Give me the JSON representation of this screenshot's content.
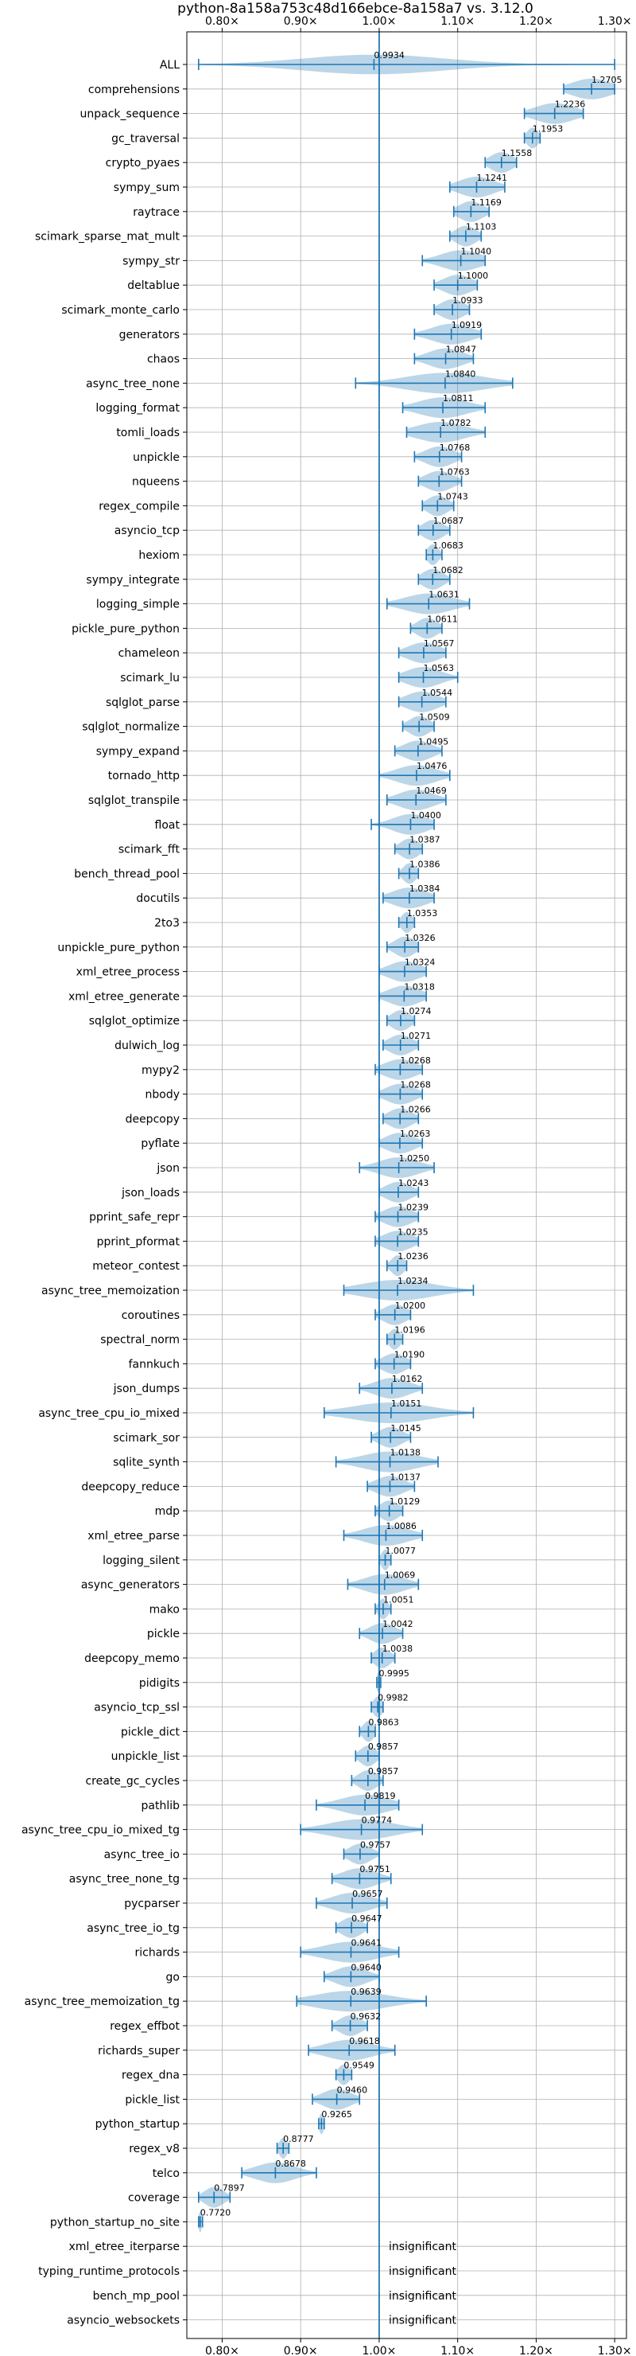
{
  "chart_data": {
    "type": "violin",
    "title": "python-8a158a753c48d166ebce-8a158a7 vs. 3.12.0",
    "xlim": [
      0.755,
      1.315
    ],
    "reference_x": 1.0,
    "grid": true,
    "x_ticks": [
      {
        "value": 0.8,
        "label": "0.80×"
      },
      {
        "value": 0.9,
        "label": "0.90×"
      },
      {
        "value": 1.0,
        "label": "1.00×"
      },
      {
        "value": 1.1,
        "label": "1.10×"
      },
      {
        "value": 1.2,
        "label": "1.20×"
      },
      {
        "value": 1.3,
        "label": "1.30×"
      }
    ],
    "insignificant_label": "insignificant",
    "benchmarks": [
      {
        "name": "ALL",
        "value": 0.9934,
        "label": "0.9934",
        "min": 0.77,
        "max": 1.3,
        "spread": 0.09,
        "peak": 0.95
      },
      {
        "name": "comprehensions",
        "value": 1.2705,
        "label": "1.2705",
        "min": 1.235,
        "max": 1.3,
        "spread": 0.025
      },
      {
        "name": "unpack_sequence",
        "value": 1.2236,
        "label": "1.2236",
        "min": 1.185,
        "max": 1.26,
        "spread": 0.025
      },
      {
        "name": "gc_traversal",
        "value": 1.1953,
        "label": "1.1953",
        "min": 1.185,
        "max": 1.205,
        "spread": 0.007
      },
      {
        "name": "crypto_pyaes",
        "value": 1.1558,
        "label": "1.1558",
        "min": 1.135,
        "max": 1.175,
        "spread": 0.014
      },
      {
        "name": "sympy_sum",
        "value": 1.1241,
        "label": "1.1241",
        "min": 1.09,
        "max": 1.16,
        "spread": 0.022
      },
      {
        "name": "raytrace",
        "value": 1.1169,
        "label": "1.1169",
        "min": 1.095,
        "max": 1.14,
        "spread": 0.015
      },
      {
        "name": "scimark_sparse_mat_mult",
        "value": 1.1103,
        "label": "1.1103",
        "min": 1.09,
        "max": 1.13,
        "spread": 0.013
      },
      {
        "name": "sympy_str",
        "value": 1.104,
        "label": "1.1040",
        "min": 1.055,
        "max": 1.135,
        "spread": 0.025
      },
      {
        "name": "deltablue",
        "value": 1.1,
        "label": "1.1000",
        "min": 1.07,
        "max": 1.125,
        "spread": 0.018
      },
      {
        "name": "scimark_monte_carlo",
        "value": 1.0933,
        "label": "1.0933",
        "min": 1.07,
        "max": 1.115,
        "spread": 0.015
      },
      {
        "name": "generators",
        "value": 1.0919,
        "label": "1.0919",
        "min": 1.045,
        "max": 1.13,
        "spread": 0.025
      },
      {
        "name": "chaos",
        "value": 1.0847,
        "label": "1.0847",
        "min": 1.045,
        "max": 1.12,
        "spread": 0.022
      },
      {
        "name": "async_tree_none",
        "value": 1.084,
        "label": "1.0840",
        "min": 0.97,
        "max": 1.17,
        "spread": 0.05
      },
      {
        "name": "logging_format",
        "value": 1.0811,
        "label": "1.0811",
        "min": 1.03,
        "max": 1.135,
        "spread": 0.03
      },
      {
        "name": "tomli_loads",
        "value": 1.0782,
        "label": "1.0782",
        "min": 1.035,
        "max": 1.135,
        "spread": 0.03
      },
      {
        "name": "unpickle",
        "value": 1.0768,
        "label": "1.0768",
        "min": 1.045,
        "max": 1.105,
        "spread": 0.018
      },
      {
        "name": "nqueens",
        "value": 1.0763,
        "label": "1.0763",
        "min": 1.05,
        "max": 1.105,
        "spread": 0.017
      },
      {
        "name": "regex_compile",
        "value": 1.0743,
        "label": "1.0743",
        "min": 1.055,
        "max": 1.095,
        "spread": 0.013
      },
      {
        "name": "asyncio_tcp",
        "value": 1.0687,
        "label": "1.0687",
        "min": 1.05,
        "max": 1.09,
        "spread": 0.013
      },
      {
        "name": "hexiom",
        "value": 1.0683,
        "label": "1.0683",
        "min": 1.06,
        "max": 1.08,
        "spread": 0.007
      },
      {
        "name": "sympy_integrate",
        "value": 1.0682,
        "label": "1.0682",
        "min": 1.05,
        "max": 1.09,
        "spread": 0.013
      },
      {
        "name": "logging_simple",
        "value": 1.0631,
        "label": "1.0631",
        "min": 1.01,
        "max": 1.115,
        "spread": 0.03
      },
      {
        "name": "pickle_pure_python",
        "value": 1.0611,
        "label": "1.0611",
        "min": 1.04,
        "max": 1.08,
        "spread": 0.013
      },
      {
        "name": "chameleon",
        "value": 1.0567,
        "label": "1.0567",
        "min": 1.025,
        "max": 1.085,
        "spread": 0.02
      },
      {
        "name": "scimark_lu",
        "value": 1.0563,
        "label": "1.0563",
        "min": 1.025,
        "max": 1.1,
        "spread": 0.022
      },
      {
        "name": "sqlglot_parse",
        "value": 1.0544,
        "label": "1.0544",
        "min": 1.025,
        "max": 1.085,
        "spread": 0.02
      },
      {
        "name": "sqlglot_normalize",
        "value": 1.0509,
        "label": "1.0509",
        "min": 1.03,
        "max": 1.07,
        "spread": 0.013
      },
      {
        "name": "sympy_expand",
        "value": 1.0495,
        "label": "1.0495",
        "min": 1.02,
        "max": 1.08,
        "spread": 0.018
      },
      {
        "name": "tornado_http",
        "value": 1.0476,
        "label": "1.0476",
        "min": 1.0,
        "max": 1.09,
        "spread": 0.025
      },
      {
        "name": "sqlglot_transpile",
        "value": 1.0469,
        "label": "1.0469",
        "min": 1.01,
        "max": 1.085,
        "spread": 0.022
      },
      {
        "name": "float",
        "value": 1.04,
        "label": "1.0400",
        "min": 0.99,
        "max": 1.07,
        "spread": 0.022
      },
      {
        "name": "scimark_fft",
        "value": 1.0387,
        "label": "1.0387",
        "min": 1.02,
        "max": 1.055,
        "spread": 0.012
      },
      {
        "name": "bench_thread_pool",
        "value": 1.0386,
        "label": "1.0386",
        "min": 1.025,
        "max": 1.05,
        "spread": 0.008
      },
      {
        "name": "docutils",
        "value": 1.0384,
        "label": "1.0384",
        "min": 1.005,
        "max": 1.07,
        "spread": 0.022
      },
      {
        "name": "2to3",
        "value": 1.0353,
        "label": "1.0353",
        "min": 1.025,
        "max": 1.045,
        "spread": 0.007
      },
      {
        "name": "unpickle_pure_python",
        "value": 1.0326,
        "label": "1.0326",
        "min": 1.01,
        "max": 1.05,
        "spread": 0.013
      },
      {
        "name": "xml_etree_process",
        "value": 1.0324,
        "label": "1.0324",
        "min": 1.0,
        "max": 1.06,
        "spread": 0.02
      },
      {
        "name": "xml_etree_generate",
        "value": 1.0318,
        "label": "1.0318",
        "min": 1.0,
        "max": 1.06,
        "spread": 0.02
      },
      {
        "name": "sqlglot_optimize",
        "value": 1.0274,
        "label": "1.0274",
        "min": 1.01,
        "max": 1.045,
        "spread": 0.012
      },
      {
        "name": "dulwich_log",
        "value": 1.0271,
        "label": "1.0271",
        "min": 1.005,
        "max": 1.05,
        "spread": 0.015
      },
      {
        "name": "mypy2",
        "value": 1.0268,
        "label": "1.0268",
        "min": 0.995,
        "max": 1.055,
        "spread": 0.02
      },
      {
        "name": "nbody",
        "value": 1.0268,
        "label": "1.0268",
        "min": 1.0,
        "max": 1.055,
        "spread": 0.018
      },
      {
        "name": "deepcopy",
        "value": 1.0266,
        "label": "1.0266",
        "min": 1.005,
        "max": 1.05,
        "spread": 0.015
      },
      {
        "name": "pyflate",
        "value": 1.0263,
        "label": "1.0263",
        "min": 1.0,
        "max": 1.055,
        "spread": 0.018
      },
      {
        "name": "json",
        "value": 1.025,
        "label": "1.0250",
        "min": 0.975,
        "max": 1.07,
        "spread": 0.025
      },
      {
        "name": "json_loads",
        "value": 1.0243,
        "label": "1.0243",
        "min": 1.0,
        "max": 1.05,
        "spread": 0.016
      },
      {
        "name": "pprint_safe_repr",
        "value": 1.0239,
        "label": "1.0239",
        "min": 0.995,
        "max": 1.05,
        "spread": 0.018
      },
      {
        "name": "pprint_pformat",
        "value": 1.0235,
        "label": "1.0235",
        "min": 0.995,
        "max": 1.05,
        "spread": 0.018
      },
      {
        "name": "meteor_contest",
        "value": 1.0236,
        "label": "1.0236",
        "min": 1.01,
        "max": 1.035,
        "spread": 0.008
      },
      {
        "name": "async_tree_memoization",
        "value": 1.0234,
        "label": "1.0234",
        "min": 0.955,
        "max": 1.12,
        "spread": 0.045
      },
      {
        "name": "coroutines",
        "value": 1.02,
        "label": "1.0200",
        "min": 0.995,
        "max": 1.04,
        "spread": 0.015
      },
      {
        "name": "spectral_norm",
        "value": 1.0196,
        "label": "1.0196",
        "min": 1.01,
        "max": 1.03,
        "spread": 0.007
      },
      {
        "name": "fannkuch",
        "value": 1.019,
        "label": "1.0190",
        "min": 0.995,
        "max": 1.04,
        "spread": 0.015
      },
      {
        "name": "json_dumps",
        "value": 1.0162,
        "label": "1.0162",
        "min": 0.975,
        "max": 1.055,
        "spread": 0.022
      },
      {
        "name": "async_tree_cpu_io_mixed",
        "value": 1.0151,
        "label": "1.0151",
        "min": 0.93,
        "max": 1.12,
        "spread": 0.05
      },
      {
        "name": "scimark_sor",
        "value": 1.0145,
        "label": "1.0145",
        "min": 0.99,
        "max": 1.04,
        "spread": 0.015
      },
      {
        "name": "sqlite_synth",
        "value": 1.0138,
        "label": "1.0138",
        "min": 0.945,
        "max": 1.075,
        "spread": 0.035
      },
      {
        "name": "deepcopy_reduce",
        "value": 1.0137,
        "label": "1.0137",
        "min": 0.985,
        "max": 1.045,
        "spread": 0.018
      },
      {
        "name": "mdp",
        "value": 1.0129,
        "label": "1.0129",
        "min": 0.995,
        "max": 1.03,
        "spread": 0.012
      },
      {
        "name": "xml_etree_parse",
        "value": 1.0086,
        "label": "1.0086",
        "min": 0.955,
        "max": 1.055,
        "spread": 0.028
      },
      {
        "name": "logging_silent",
        "value": 1.0077,
        "label": "1.0077",
        "min": 1.0,
        "max": 1.015,
        "spread": 0.005
      },
      {
        "name": "async_generators",
        "value": 1.0069,
        "label": "1.0069",
        "min": 0.96,
        "max": 1.05,
        "spread": 0.025
      },
      {
        "name": "mako",
        "value": 1.0051,
        "label": "1.0051",
        "min": 0.995,
        "max": 1.015,
        "spread": 0.006
      },
      {
        "name": "pickle",
        "value": 1.0042,
        "label": "1.0042",
        "min": 0.975,
        "max": 1.03,
        "spread": 0.016
      },
      {
        "name": "deepcopy_memo",
        "value": 1.0038,
        "label": "1.0038",
        "min": 0.99,
        "max": 1.02,
        "spread": 0.01
      },
      {
        "name": "pidigits",
        "value": 0.9995,
        "label": "0.9995",
        "min": 0.997,
        "max": 1.002,
        "spread": 0.003
      },
      {
        "name": "asyncio_tcp_ssl",
        "value": 0.9982,
        "label": "0.9982",
        "min": 0.99,
        "max": 1.005,
        "spread": 0.006
      },
      {
        "name": "pickle_dict",
        "value": 0.9863,
        "label": "0.9863",
        "min": 0.975,
        "max": 0.995,
        "spread": 0.007
      },
      {
        "name": "unpickle_list",
        "value": 0.9857,
        "label": "0.9857",
        "min": 0.97,
        "max": 1.0,
        "spread": 0.01
      },
      {
        "name": "create_gc_cycles",
        "value": 0.9857,
        "label": "0.9857",
        "min": 0.965,
        "max": 1.005,
        "spread": 0.012
      },
      {
        "name": "pathlib",
        "value": 0.9819,
        "label": "0.9819",
        "min": 0.92,
        "max": 1.025,
        "spread": 0.03
      },
      {
        "name": "async_tree_cpu_io_mixed_tg",
        "value": 0.9774,
        "label": "0.9774",
        "min": 0.9,
        "max": 1.055,
        "spread": 0.04
      },
      {
        "name": "async_tree_io",
        "value": 0.9757,
        "label": "0.9757",
        "min": 0.955,
        "max": 1.0,
        "spread": 0.014
      },
      {
        "name": "async_tree_none_tg",
        "value": 0.9751,
        "label": "0.9751",
        "min": 0.94,
        "max": 1.015,
        "spread": 0.022
      },
      {
        "name": "pycparser",
        "value": 0.9657,
        "label": "0.9657",
        "min": 0.92,
        "max": 1.01,
        "spread": 0.025
      },
      {
        "name": "async_tree_io_tg",
        "value": 0.9647,
        "label": "0.9647",
        "min": 0.945,
        "max": 0.985,
        "spread": 0.013
      },
      {
        "name": "richards",
        "value": 0.9641,
        "label": "0.9641",
        "min": 0.9,
        "max": 1.025,
        "spread": 0.035
      },
      {
        "name": "go",
        "value": 0.964,
        "label": "0.9640",
        "min": 0.93,
        "max": 1.0,
        "spread": 0.02
      },
      {
        "name": "async_tree_memoization_tg",
        "value": 0.9639,
        "label": "0.9639",
        "min": 0.895,
        "max": 1.06,
        "spread": 0.045
      },
      {
        "name": "regex_effbot",
        "value": 0.9632,
        "label": "0.9632",
        "min": 0.94,
        "max": 0.985,
        "spread": 0.014
      },
      {
        "name": "richards_super",
        "value": 0.9618,
        "label": "0.9618",
        "min": 0.91,
        "max": 1.02,
        "spread": 0.03
      },
      {
        "name": "regex_dna",
        "value": 0.9549,
        "label": "0.9549",
        "min": 0.945,
        "max": 0.965,
        "spread": 0.007
      },
      {
        "name": "pickle_list",
        "value": 0.946,
        "label": "0.9460",
        "min": 0.915,
        "max": 0.975,
        "spread": 0.018
      },
      {
        "name": "python_startup",
        "value": 0.9265,
        "label": "0.9265",
        "min": 0.923,
        "max": 0.93,
        "spread": 0.003
      },
      {
        "name": "regex_v8",
        "value": 0.8777,
        "label": "0.8777",
        "min": 0.87,
        "max": 0.885,
        "spread": 0.005
      },
      {
        "name": "telco",
        "value": 0.8678,
        "label": "0.8678",
        "min": 0.825,
        "max": 0.92,
        "spread": 0.025
      },
      {
        "name": "coverage",
        "value": 0.7897,
        "label": "0.7897",
        "min": 0.77,
        "max": 0.81,
        "spread": 0.012
      },
      {
        "name": "python_startup_no_site",
        "value": 0.772,
        "label": "0.7720",
        "min": 0.77,
        "max": 0.775,
        "spread": 0.002
      },
      {
        "name": "xml_etree_iterparse",
        "insignificant": true
      },
      {
        "name": "typing_runtime_protocols",
        "insignificant": true
      },
      {
        "name": "bench_mp_pool",
        "insignificant": true
      },
      {
        "name": "asyncio_websockets",
        "insignificant": true
      }
    ]
  },
  "colors": {
    "violin_fill": "#1f77b4",
    "violin_opacity": "0.3",
    "line": "#1f77b4",
    "grid": "#b0b0b0",
    "axis": "#000000",
    "text": "#000000"
  }
}
